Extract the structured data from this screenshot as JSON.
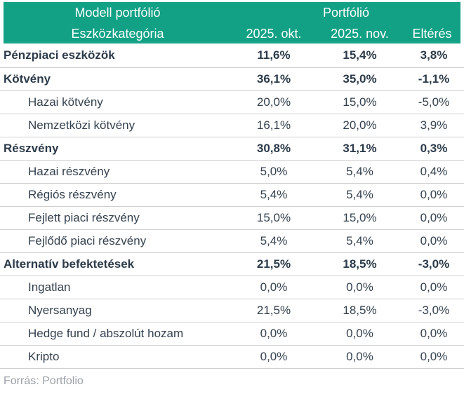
{
  "chart_data": {
    "type": "table",
    "title_left": "Modell portfólió",
    "title_right": "Portfólió",
    "columns": [
      "Eszközkategória",
      "2025. okt.",
      "2025. nov.",
      "Eltérés"
    ],
    "rows": [
      {
        "label": "Pénzpiaci eszközök",
        "values": [
          "11,6%",
          "15,4%",
          "3,8%"
        ],
        "style": "category"
      },
      {
        "label": "Kötvény",
        "values": [
          "36,1%",
          "35,0%",
          "-1,1%"
        ],
        "style": "category"
      },
      {
        "label": "Hazai kötvény",
        "values": [
          "20,0%",
          "15,0%",
          "-5,0%"
        ],
        "style": "sub"
      },
      {
        "label": "Nemzetközi kötvény",
        "values": [
          "16,1%",
          "20,0%",
          "3,9%"
        ],
        "style": "sub"
      },
      {
        "label": "Részvény",
        "values": [
          "30,8%",
          "31,1%",
          "0,3%"
        ],
        "style": "category"
      },
      {
        "label": "Hazai részvény",
        "values": [
          "5,0%",
          "5,4%",
          "0,4%"
        ],
        "style": "sub"
      },
      {
        "label": "Régiós részvény",
        "values": [
          "5,4%",
          "5,4%",
          "0,0%"
        ],
        "style": "sub"
      },
      {
        "label": "Fejlett piaci részvény",
        "values": [
          "15,0%",
          "15,0%",
          "0,0%"
        ],
        "style": "sub"
      },
      {
        "label": "Fejlődő piaci részvény",
        "values": [
          "5,4%",
          "5,4%",
          "0,0%"
        ],
        "style": "sub"
      },
      {
        "label": "Alternatív befektetések",
        "values": [
          "21,5%",
          "18,5%",
          "-3,0%"
        ],
        "style": "category"
      },
      {
        "label": "Ingatlan",
        "values": [
          "0,0%",
          "0,0%",
          "0,0%"
        ],
        "style": "sub"
      },
      {
        "label": "Nyersanyag",
        "values": [
          "21,5%",
          "18,5%",
          "-3,0%"
        ],
        "style": "sub"
      },
      {
        "label": "Hedge fund / abszolút hozam",
        "values": [
          "0,0%",
          "0,0%",
          "0,0%"
        ],
        "style": "sub"
      },
      {
        "label": "Kripto",
        "values": [
          "0,0%",
          "0,0%",
          "0,0%"
        ],
        "style": "sub"
      }
    ],
    "source": "Forrás: Portfolio"
  },
  "colors": {
    "header_bg": "#12a185",
    "header_bottom_edge": "#8ad2c0",
    "header_text": "#ffffff",
    "category_text": "#2c3a49",
    "sub_text": "#34414e",
    "separator": "#cfcfcf",
    "source_text": "#9aa0a6",
    "background": "#ffffff"
  }
}
